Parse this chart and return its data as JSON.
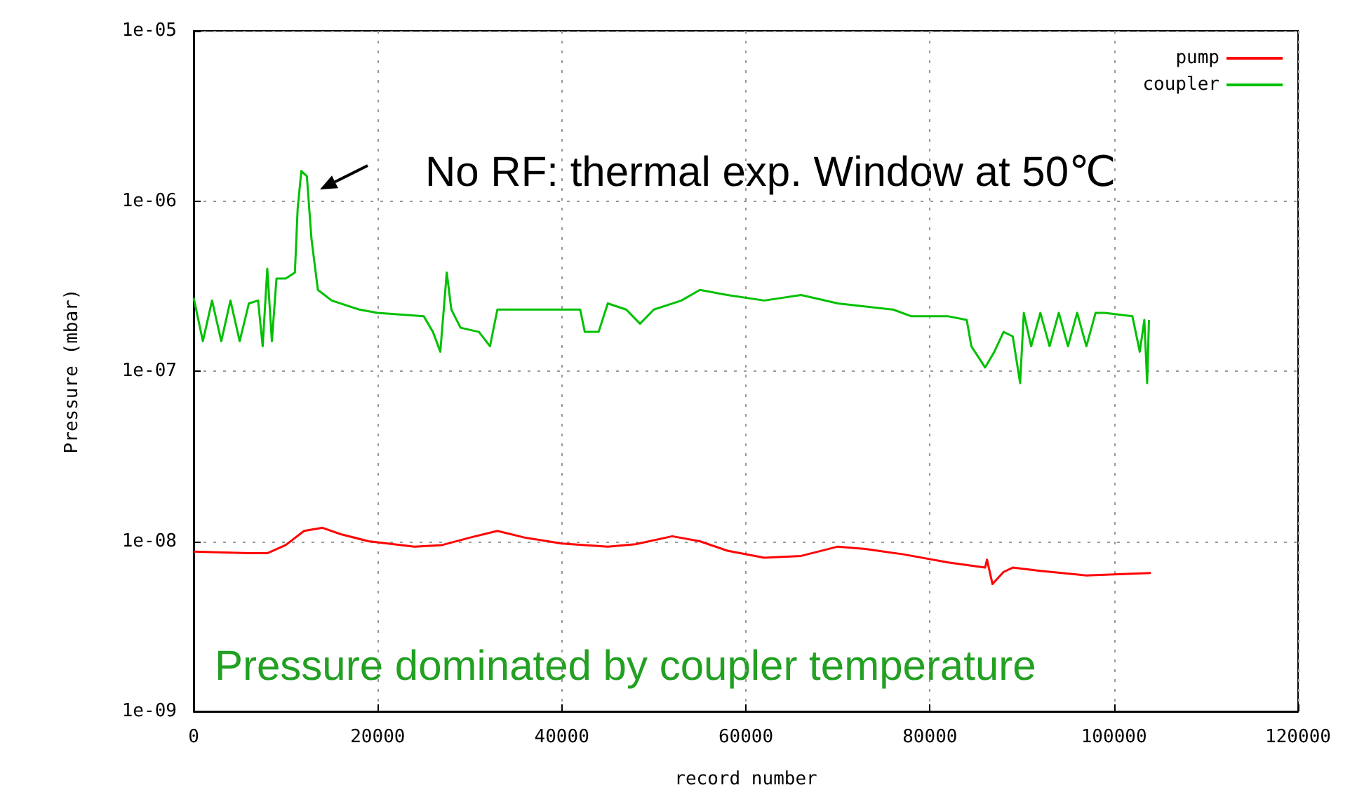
{
  "chart_data": {
    "type": "line",
    "xlabel": "record number",
    "ylabel": "Pressure (mbar)",
    "log": "y",
    "grid": true,
    "legend": "top right",
    "marker": "none",
    "line_style": "solid",
    "xlim": [
      0,
      120000
    ],
    "xticks": [
      0,
      20000,
      40000,
      60000,
      80000,
      100000,
      120000
    ],
    "ylim": [
      1e-09,
      1e-05
    ],
    "yticks": [
      {
        "value": 1e-09,
        "label": "1e-09"
      },
      {
        "value": 1e-08,
        "label": "1e-08"
      },
      {
        "value": 1e-07,
        "label": "1e-07"
      },
      {
        "value": 1e-06,
        "label": "1e-06"
      },
      {
        "value": 1e-05,
        "label": "1e-05"
      }
    ],
    "series": [
      {
        "name": "pump",
        "color": "#ff0000",
        "x": [
          0,
          6000,
          8000,
          10000,
          12000,
          14000,
          16000,
          19000,
          24000,
          27000,
          30000,
          33000,
          36000,
          40000,
          45000,
          48000,
          52000,
          55000,
          58000,
          62000,
          66000,
          70000,
          73000,
          77000,
          82000,
          86000,
          86200,
          86800,
          88000,
          89000,
          92000,
          97000,
          104000
        ],
        "values": [
          8.7e-09,
          8.5e-09,
          8.5e-09,
          9.5e-09,
          1.15e-08,
          1.2e-08,
          1.1e-08,
          1e-08,
          9.3e-09,
          9.5e-09,
          1.05e-08,
          1.15e-08,
          1.05e-08,
          9.7e-09,
          9.3e-09,
          9.6e-09,
          1.07e-08,
          1e-08,
          8.8e-09,
          8e-09,
          8.2e-09,
          9.3e-09,
          9e-09,
          8.4e-09,
          7.5e-09,
          7e-09,
          7.8e-09,
          5.6e-09,
          6.6e-09,
          7e-09,
          6.7e-09,
          6.3e-09,
          6.5e-09
        ]
      },
      {
        "name": "coupler",
        "color": "#00c000",
        "x": [
          0,
          1000,
          2000,
          3000,
          4000,
          5000,
          6000,
          7000,
          7500,
          8000,
          8500,
          9000,
          10000,
          11000,
          11300,
          11700,
          12300,
          12800,
          13500,
          15000,
          18000,
          20000,
          25000,
          26000,
          26800,
          27500,
          28000,
          29000,
          31000,
          32200,
          33000,
          35000,
          38000,
          42000,
          42500,
          44000,
          45000,
          47000,
          48500,
          50000,
          53000,
          55000,
          58000,
          62000,
          66000,
          70000,
          76000,
          78000,
          82000,
          84000,
          84500,
          86000,
          87000,
          88000,
          89000,
          89800,
          90200,
          91000,
          92000,
          93000,
          94000,
          95000,
          96000,
          97000,
          98000,
          99000,
          102000,
          102800,
          103300,
          103600,
          103800
        ],
        "values": [
          2.7e-07,
          1.5e-07,
          2.6e-07,
          1.5e-07,
          2.6e-07,
          1.5e-07,
          2.5e-07,
          2.6e-07,
          1.4e-07,
          4e-07,
          1.5e-07,
          3.5e-07,
          3.5e-07,
          3.8e-07,
          9e-07,
          1.5e-06,
          1.4e-06,
          6e-07,
          3e-07,
          2.6e-07,
          2.3e-07,
          2.2e-07,
          2.1e-07,
          1.7e-07,
          1.3e-07,
          3.8e-07,
          2.3e-07,
          1.8e-07,
          1.7e-07,
          1.4e-07,
          2.3e-07,
          2.3e-07,
          2.3e-07,
          2.3e-07,
          1.7e-07,
          1.7e-07,
          2.5e-07,
          2.3e-07,
          1.9e-07,
          2.3e-07,
          2.6e-07,
          3e-07,
          2.8e-07,
          2.6e-07,
          2.8e-07,
          2.5e-07,
          2.3e-07,
          2.1e-07,
          2.1e-07,
          2e-07,
          1.4e-07,
          1.05e-07,
          1.3e-07,
          1.7e-07,
          1.6e-07,
          8.5e-08,
          2.2e-07,
          1.4e-07,
          2.2e-07,
          1.4e-07,
          2.2e-07,
          1.4e-07,
          2.2e-07,
          1.4e-07,
          2.2e-07,
          2.2e-07,
          2.1e-07,
          1.3e-07,
          2e-07,
          8.5e-08,
          2e-07
        ]
      }
    ],
    "annotations": [
      "No RF: thermal exp. Window at 50℃",
      "Pressure dominated by coupler temperature"
    ]
  }
}
